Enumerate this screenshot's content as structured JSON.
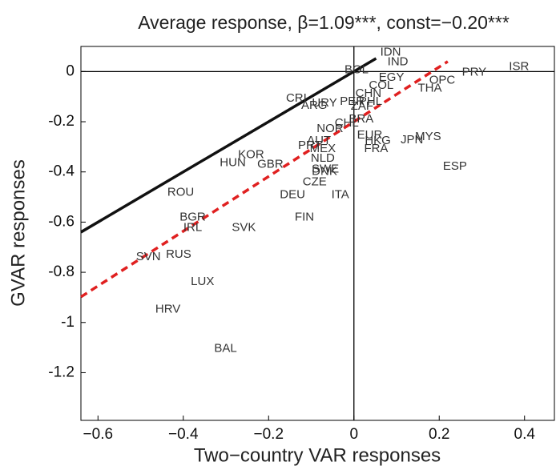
{
  "chart_data": {
    "type": "scatter",
    "title": "Average response, β=1.09***, const=−0.20***",
    "xlabel": "Two−country VAR responses",
    "ylabel": "GVAR responses",
    "xlim": [
      -0.64,
      0.47
    ],
    "ylim": [
      -1.39,
      0.1
    ],
    "xticks": [
      {
        "value": -0.6,
        "label": "−0.6"
      },
      {
        "value": -0.4,
        "label": "−0.4"
      },
      {
        "value": -0.2,
        "label": "−0.2"
      },
      0,
      {
        "value": 0.2,
        "label": "0.2"
      },
      {
        "value": 0.4,
        "label": "0.4"
      }
    ],
    "yticks": [
      0,
      -0.2,
      -0.4,
      -0.6,
      -0.8,
      -1,
      -1.2
    ],
    "lines": [
      {
        "x": [
          -0.64,
          0.052
        ],
        "y": [
          -0.64,
          0.052
        ],
        "color": "#111111",
        "style": "solid"
      },
      {
        "x": [
          -0.64,
          0.22
        ],
        "y": [
          -0.898,
          0.04
        ],
        "color": "#e02020",
        "style": "dashed"
      }
    ],
    "points": [
      {
        "label": "IDN",
        "x": 0.086,
        "y": 0.076
      },
      {
        "label": "IND",
        "x": 0.103,
        "y": 0.038
      },
      {
        "label": "BOL",
        "x": 0.006,
        "y": 0.006
      },
      {
        "label": "EGY",
        "x": 0.088,
        "y": -0.025
      },
      {
        "label": "PRY",
        "x": 0.282,
        "y": -0.003
      },
      {
        "label": "ISR",
        "x": 0.387,
        "y": 0.019
      },
      {
        "label": "OPC",
        "x": 0.207,
        "y": -0.035
      },
      {
        "label": "THA",
        "x": 0.178,
        "y": -0.067
      },
      {
        "label": "COL",
        "x": 0.064,
        "y": -0.057
      },
      {
        "label": "CHN",
        "x": 0.034,
        "y": -0.089
      },
      {
        "label": "CRI",
        "x": -0.135,
        "y": -0.108
      },
      {
        "label": "ARG",
        "x": -0.093,
        "y": -0.137
      },
      {
        "label": "URY",
        "x": -0.069,
        "y": -0.127
      },
      {
        "label": "PER",
        "x": -0.004,
        "y": -0.121
      },
      {
        "label": "PHL",
        "x": 0.039,
        "y": -0.121
      },
      {
        "label": "ZAF",
        "x": 0.019,
        "y": -0.14
      },
      {
        "label": "BRA",
        "x": 0.017,
        "y": -0.19
      },
      {
        "label": "CHL",
        "x": -0.017,
        "y": -0.206
      },
      {
        "label": "NOR",
        "x": -0.056,
        "y": -0.229
      },
      {
        "label": "AUT",
        "x": -0.082,
        "y": -0.276
      },
      {
        "label": "EUR",
        "x": 0.037,
        "y": -0.254
      },
      {
        "label": "HKG",
        "x": 0.056,
        "y": -0.276
      },
      {
        "label": "FRA",
        "x": 0.052,
        "y": -0.308
      },
      {
        "label": "JPN",
        "x": 0.136,
        "y": -0.273
      },
      {
        "label": "MYS",
        "x": 0.174,
        "y": -0.26
      },
      {
        "label": "PRT",
        "x": -0.103,
        "y": -0.295
      },
      {
        "label": "MEX",
        "x": -0.073,
        "y": -0.308
      },
      {
        "label": "NLD",
        "x": -0.073,
        "y": -0.346
      },
      {
        "label": "KOR",
        "x": -0.241,
        "y": -0.333
      },
      {
        "label": "HUN",
        "x": -0.284,
        "y": -0.365
      },
      {
        "label": "GBR",
        "x": -0.196,
        "y": -0.371
      },
      {
        "label": "SWE",
        "x": -0.067,
        "y": -0.39
      },
      {
        "label": "DNK",
        "x": -0.069,
        "y": -0.4
      },
      {
        "label": "CZE",
        "x": -0.092,
        "y": -0.441
      },
      {
        "label": "ESP",
        "x": 0.237,
        "y": -0.378
      },
      {
        "label": "ITA",
        "x": -0.032,
        "y": -0.492
      },
      {
        "label": "DEU",
        "x": -0.144,
        "y": -0.492
      },
      {
        "label": "ROU",
        "x": -0.406,
        "y": -0.483
      },
      {
        "label": "FIN",
        "x": -0.116,
        "y": -0.581
      },
      {
        "label": "BGR",
        "x": -0.378,
        "y": -0.581
      },
      {
        "label": "IRL",
        "x": -0.378,
        "y": -0.622
      },
      {
        "label": "SVK",
        "x": -0.258,
        "y": -0.622
      },
      {
        "label": "RUS",
        "x": -0.411,
        "y": -0.73
      },
      {
        "label": "SVN",
        "x": -0.482,
        "y": -0.74
      },
      {
        "label": "LUX",
        "x": -0.355,
        "y": -0.838
      },
      {
        "label": "HRV",
        "x": -0.436,
        "y": -0.949
      },
      {
        "label": "BAL",
        "x": -0.301,
        "y": -1.105
      }
    ]
  }
}
